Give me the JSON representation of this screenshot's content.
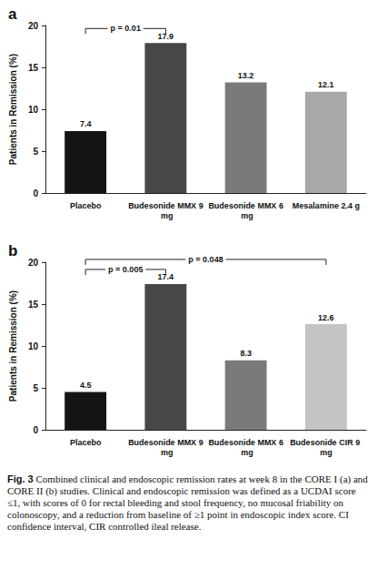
{
  "chart_data": [
    {
      "type": "bar",
      "title": "a",
      "y_label": "Patients in Remission (%)",
      "categories": [
        "Placebo",
        "Budesonide MMX 9 mg",
        "Budesonide MMX 6 mg",
        "Mesalamine 2.4 g"
      ],
      "values": [
        7.4,
        17.9,
        13.2,
        12.1
      ],
      "colors": [
        "#141414",
        "#474747",
        "#7a7a7a",
        "#a8a8a8"
      ],
      "ylim": [
        0,
        20
      ],
      "yticks": [
        0,
        5,
        10,
        15,
        20
      ],
      "grid": false,
      "data_labels": true,
      "annotations": [
        {
          "text": "p = 0.01",
          "categories": [
            "Placebo",
            "Budesonide MMX 9 mg"
          ]
        }
      ]
    },
    {
      "type": "bar",
      "title": "b",
      "y_label": "Patients in Remission (%)",
      "categories": [
        "Placebo",
        "Budesonide MMX 9 mg",
        "Budesonide MMX 6 mg",
        "Budesonide CIR 9 mg"
      ],
      "values": [
        4.5,
        17.4,
        8.3,
        12.6
      ],
      "colors": [
        "#141414",
        "#474747",
        "#7a7a7a",
        "#c4c4c4"
      ],
      "ylim": [
        0,
        20
      ],
      "yticks": [
        0,
        5,
        10,
        15,
        20
      ],
      "grid": false,
      "data_labels": true,
      "annotations": [
        {
          "text": "p = 0.005",
          "categories": [
            "Placebo",
            "Budesonide MMX 9 mg"
          ]
        },
        {
          "text": "p = 0.048",
          "categories": [
            "Placebo",
            "Budesonide CIR 9 mg"
          ]
        }
      ]
    }
  ],
  "caption": {
    "label": "Fig. 3",
    "text": "Combined clinical and endoscopic remission rates at week 8 in the CORE I (a) and CORE II (b) studies. Clinical and endoscopic remission was defined as a UCDAI score ≤1, with scores of 0 for rectal bleeding and stool frequency, no mucosal friability on colonoscopy, and a reduction from baseline of ≥1 point in endoscopic index score. CI confidence interval, CIR controlled ileal release."
  }
}
